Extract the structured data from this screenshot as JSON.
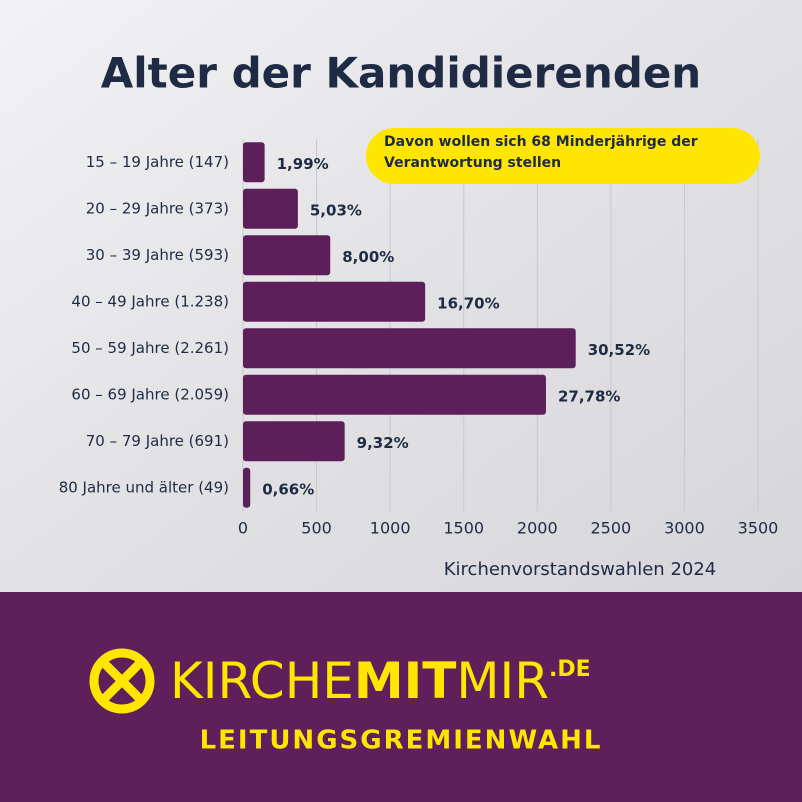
{
  "chart_data": {
    "type": "bar",
    "orientation": "horizontal",
    "title": "Alter der Kandidierenden",
    "annotation": "Davon wollen sich 68 Minderjährige der Verantwortung stellen",
    "caption": "Kirchenvorstandswahlen 2024",
    "categories": [
      "15 – 19 Jahre (147)",
      "20 – 29 Jahre (373)",
      "30 – 39 Jahre (593)",
      "40 – 49 Jahre (1.238)",
      "50 – 59 Jahre (2.261)",
      "60 – 69 Jahre (2.059)",
      "70 – 79 Jahre (691)",
      "80 Jahre und älter (49)"
    ],
    "values": [
      147,
      373,
      593,
      1238,
      2261,
      2059,
      691,
      49
    ],
    "share_labels": [
      "1,99%",
      "5,03%",
      "8,00%",
      "16,70%",
      "30,52%",
      "27,78%",
      "9,32%",
      "0,66%"
    ],
    "color": "#5c1f5a",
    "xlim": [
      0,
      3500
    ],
    "xticks": [
      0,
      500,
      1000,
      1500,
      2000,
      2500,
      3000,
      3500
    ],
    "grid": true
  },
  "footer": {
    "logo_part1": "KIRCHE",
    "logo_part2": "MIT",
    "logo_part3": "MIR",
    "logo_suffix": ".DE",
    "subtitle": "LEITUNGSGREMIENWAHL"
  }
}
